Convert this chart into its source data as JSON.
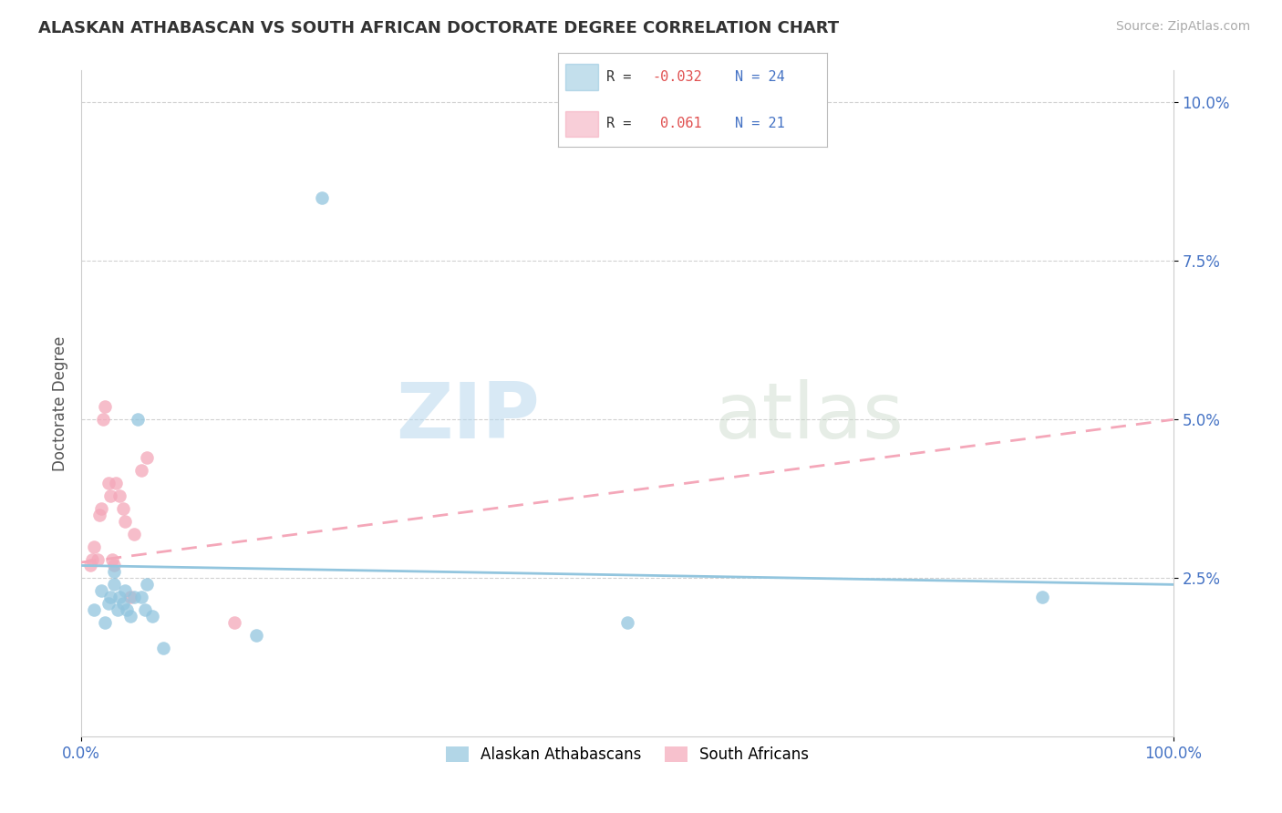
{
  "title": "ALASKAN ATHABASCAN VS SOUTH AFRICAN DOCTORATE DEGREE CORRELATION CHART",
  "source": "Source: ZipAtlas.com",
  "ylabel": "Doctorate Degree",
  "xlim": [
    0,
    1.0
  ],
  "ylim": [
    0,
    0.105
  ],
  "yticks": [
    0.025,
    0.05,
    0.075,
    0.1
  ],
  "ytick_labels": [
    "2.5%",
    "5.0%",
    "7.5%",
    "10.0%"
  ],
  "xticks": [
    0.0,
    1.0
  ],
  "xtick_labels": [
    "0.0%",
    "100.0%"
  ],
  "color_blue": "#92c5de",
  "color_pink": "#f4a7b9",
  "bg_color": "#ffffff",
  "grid_color": "#cccccc",
  "blue_scatter_x": [
    0.012,
    0.018,
    0.022,
    0.025,
    0.027,
    0.03,
    0.03,
    0.033,
    0.035,
    0.038,
    0.04,
    0.042,
    0.045,
    0.048,
    0.052,
    0.055,
    0.058,
    0.06,
    0.065,
    0.075,
    0.16,
    0.22,
    0.5,
    0.88
  ],
  "blue_scatter_y": [
    0.02,
    0.023,
    0.018,
    0.021,
    0.022,
    0.024,
    0.026,
    0.02,
    0.022,
    0.021,
    0.023,
    0.02,
    0.019,
    0.022,
    0.05,
    0.022,
    0.02,
    0.024,
    0.019,
    0.014,
    0.016,
    0.085,
    0.018,
    0.022
  ],
  "pink_scatter_x": [
    0.008,
    0.01,
    0.012,
    0.015,
    0.017,
    0.018,
    0.02,
    0.022,
    0.025,
    0.027,
    0.028,
    0.03,
    0.032,
    0.035,
    0.038,
    0.04,
    0.045,
    0.048,
    0.055,
    0.06,
    0.14
  ],
  "pink_scatter_y": [
    0.027,
    0.028,
    0.03,
    0.028,
    0.035,
    0.036,
    0.05,
    0.052,
    0.04,
    0.038,
    0.028,
    0.027,
    0.04,
    0.038,
    0.036,
    0.034,
    0.022,
    0.032,
    0.042,
    0.044,
    0.018
  ],
  "blue_line_x": [
    0.0,
    1.0
  ],
  "blue_line_y": [
    0.027,
    0.024
  ],
  "pink_line_x": [
    0.0,
    1.0
  ],
  "pink_line_y": [
    0.0275,
    0.05
  ],
  "watermark_zip": "ZIP",
  "watermark_atlas": "atlas",
  "title_fontsize": 13,
  "source_fontsize": 10,
  "legend_r1_text": "R = ",
  "legend_r1_val": "-0.032",
  "legend_n1_val": "N = 24",
  "legend_r2_text": "R =  ",
  "legend_r2_val": "0.061",
  "legend_n2_val": "N = 21"
}
